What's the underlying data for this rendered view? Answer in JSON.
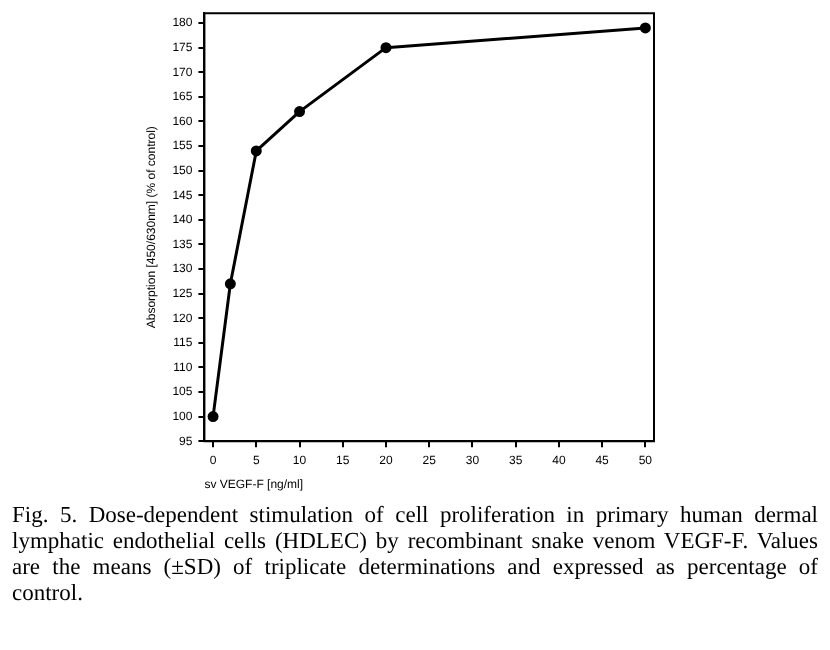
{
  "chart_data": {
    "type": "line",
    "xlabel": "sv VEGF-F [ng/ml]",
    "ylabel": "Absorption [450/630nm] (% of control)",
    "x": [
      0,
      2,
      5,
      10,
      20,
      50
    ],
    "series": [
      {
        "color": "#000000",
        "values": [
          100,
          127,
          154,
          162,
          175,
          179
        ]
      }
    ],
    "xlim": [
      -1,
      51
    ],
    "xticks": [
      0,
      5,
      10,
      15,
      20,
      25,
      30,
      35,
      40,
      45,
      50
    ],
    "ylim": [
      95,
      182
    ],
    "yticks": [
      95,
      100,
      105,
      110,
      115,
      120,
      125,
      130,
      135,
      140,
      145,
      150,
      155,
      160,
      165,
      170,
      175,
      180
    ],
    "grid": false,
    "legend": false,
    "marker": "circle",
    "line_style": "solid",
    "annotations": [
      "Fig. 5. Dose-dependent stimulation of cell proliferation in primary human dermal lymphatic endothelial cells (HDLEC) by recombinant snake venom VEGF-F. Values are the means (±SD) of triplicate determinations and expressed as percentage of control."
    ]
  }
}
